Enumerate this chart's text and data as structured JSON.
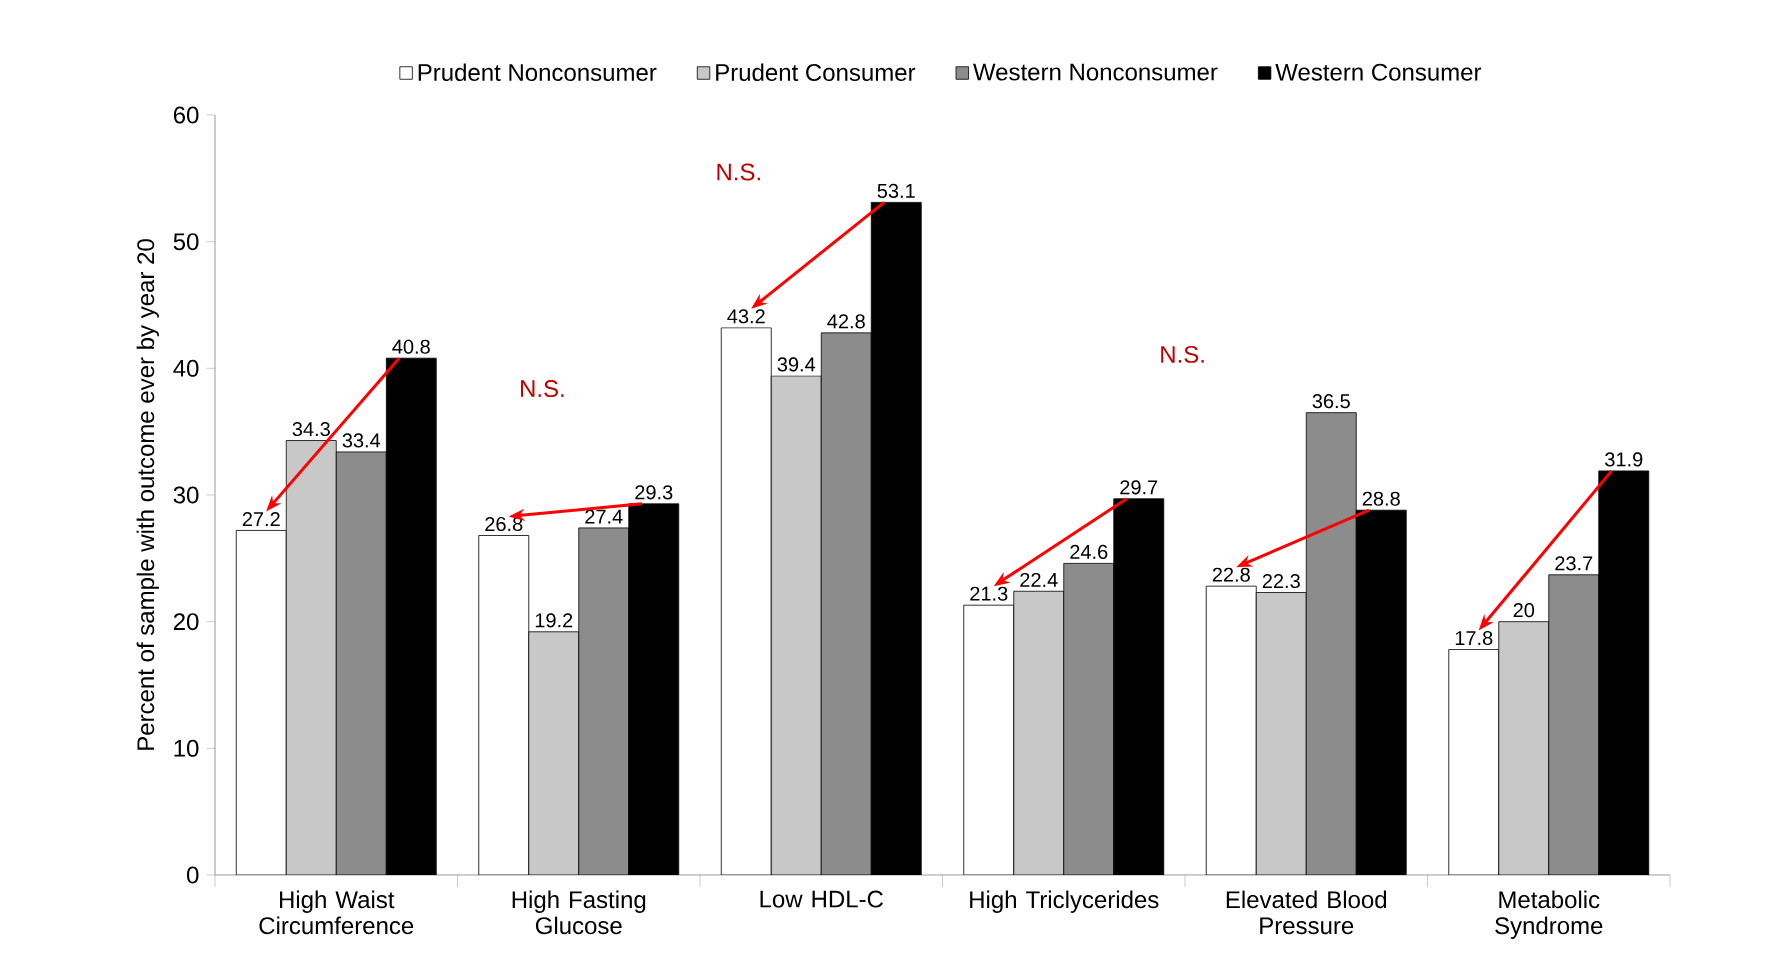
{
  "chart_data": {
    "type": "bar",
    "ylabel": "Percent of sample with outcome ever by year 20",
    "categories": [
      "High Waist Circumference",
      "High Fasting Glucose",
      "Low HDL-C",
      "High Triclycerides",
      "Elevated Blood Pressure",
      "Metabolic Syndrome"
    ],
    "series": [
      {
        "name": "Prudent Nonconsumer",
        "color": "#ffffff",
        "values": [
          27.2,
          26.8,
          43.2,
          21.3,
          22.8,
          17.8
        ]
      },
      {
        "name": "Prudent Consumer",
        "color": "#c8c8c8",
        "values": [
          34.3,
          19.2,
          39.4,
          22.4,
          22.3,
          20
        ]
      },
      {
        "name": "Western Nonconsumer",
        "color": "#8c8c8c",
        "values": [
          33.4,
          27.4,
          42.8,
          24.6,
          36.5,
          23.7
        ]
      },
      {
        "name": "Western Consumer",
        "color": "#000000",
        "values": [
          40.8,
          29.3,
          53.1,
          29.7,
          28.8,
          31.9
        ]
      }
    ],
    "ylim": [
      0,
      60
    ],
    "yticks": [
      0,
      10,
      20,
      30,
      40,
      50,
      60
    ],
    "data_labels": true,
    "legend": "top",
    "grid": false,
    "annotations": [
      "N.S.",
      "N.S.",
      "N.S."
    ]
  }
}
